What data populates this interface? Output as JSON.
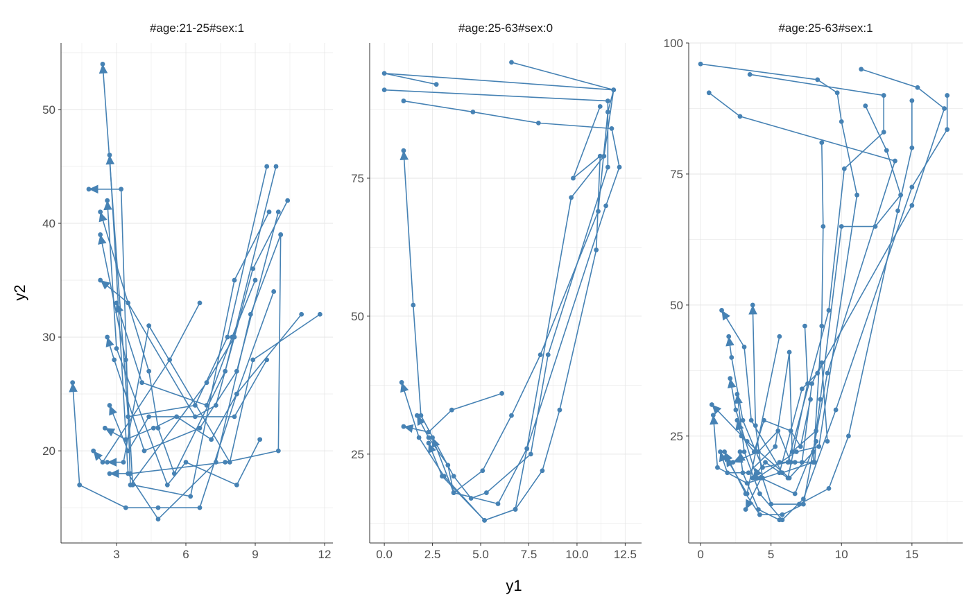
{
  "chart_data": {
    "type": "line",
    "xlabel": "y1",
    "ylabel": "y2",
    "color": "#4682b4",
    "grid": true,
    "panels": [
      {
        "title": "#age:21-25#sex:1",
        "xlim": [
          0.6,
          12.36
        ],
        "ylim": [
          11.9,
          55.85
        ],
        "xticks": [
          3,
          6,
          9,
          12
        ],
        "xtick_labels": [
          "3",
          "6",
          "9",
          "12"
        ],
        "yticks": [
          20,
          30,
          40,
          50
        ],
        "ytick_labels": [
          "20",
          "30",
          "40",
          "50"
        ],
        "paths": [
          [
            [
              1.1,
              26
            ],
            [
              1.4,
              17
            ],
            [
              3.4,
              15
            ],
            [
              4.8,
              15
            ],
            [
              6.6,
              15
            ],
            [
              8.2,
              25
            ],
            [
              9.8,
              34
            ]
          ],
          [
            [
              2.4,
              54
            ],
            [
              3.5,
              23
            ],
            [
              6.4,
              24
            ],
            [
              7.8,
              30
            ],
            [
              9.5,
              45
            ]
          ],
          [
            [
              2.7,
              46
            ],
            [
              3.5,
              18
            ],
            [
              4.8,
              14
            ],
            [
              7.3,
              19
            ],
            [
              8.8,
              32
            ],
            [
              10.1,
              39
            ]
          ],
          [
            [
              1.8,
              43
            ],
            [
              3.2,
              43
            ],
            [
              3.6,
              17
            ],
            [
              6.9,
              26
            ],
            [
              8.1,
              30
            ]
          ],
          [
            [
              2.6,
              42
            ],
            [
              3,
              29
            ],
            [
              5.2,
              17
            ],
            [
              6,
              19
            ],
            [
              8.2,
              17
            ],
            [
              9.2,
              21
            ]
          ],
          [
            [
              2.3,
              41
            ],
            [
              4.4,
              27
            ],
            [
              4.8,
              22
            ],
            [
              5.5,
              18
            ],
            [
              7.7,
              27
            ],
            [
              9.9,
              45
            ]
          ],
          [
            [
              2.3,
              39
            ],
            [
              3.4,
              28
            ],
            [
              3.7,
              17
            ],
            [
              6.2,
              16
            ],
            [
              8.1,
              35
            ],
            [
              9.6,
              41
            ]
          ],
          [
            [
              2.3,
              35
            ],
            [
              3.5,
              33
            ],
            [
              6.4,
              23
            ],
            [
              7.3,
              24
            ],
            [
              8.9,
              36
            ],
            [
              10.4,
              42
            ]
          ],
          [
            [
              2.6,
              30
            ],
            [
              2.9,
              28
            ],
            [
              4.2,
              20
            ],
            [
              6.6,
              22
            ],
            [
              8.2,
              27
            ],
            [
              10,
              41
            ]
          ],
          [
            [
              2.7,
              24
            ],
            [
              3.5,
              20
            ],
            [
              4.4,
              23
            ],
            [
              8.1,
              23
            ],
            [
              9.5,
              28
            ]
          ],
          [
            [
              2.5,
              22
            ],
            [
              3.4,
              21
            ],
            [
              4.6,
              22
            ],
            [
              5.6,
              23
            ],
            [
              7.1,
              21
            ],
            [
              8.2,
              25
            ],
            [
              11,
              32
            ]
          ],
          [
            [
              2,
              20
            ],
            [
              2.4,
              19
            ],
            [
              5.3,
              28
            ],
            [
              6.6,
              33
            ]
          ],
          [
            [
              2.6,
              19
            ],
            [
              3.3,
              19
            ],
            [
              4.4,
              31
            ],
            [
              7.9,
              19
            ],
            [
              8.9,
              28
            ],
            [
              11.8,
              32
            ]
          ],
          [
            [
              3,
              33
            ],
            [
              4.1,
              26
            ],
            [
              6.9,
              24
            ],
            [
              8,
              30
            ],
            [
              9,
              35
            ]
          ],
          [
            [
              2.7,
              18
            ],
            [
              3.6,
              18
            ],
            [
              7.7,
              19
            ],
            [
              10,
              20
            ],
            [
              10.1,
              39
            ]
          ]
        ]
      },
      {
        "title": "#age:25-63#sex:0",
        "xlim": [
          -0.76,
          13.35
        ],
        "ylim": [
          8.9,
          99.5
        ],
        "xticks": [
          0,
          2.5,
          5,
          7.5,
          10,
          12.5
        ],
        "xtick_labels": [
          "0.0",
          "2.5",
          "5.0",
          "7.5",
          "10.0",
          "12.5"
        ],
        "yticks": [
          25,
          50,
          75
        ],
        "ytick_labels": [
          "25",
          "50",
          "75"
        ],
        "paths": [
          [
            [
              1,
              80
            ],
            [
              1.5,
              52
            ],
            [
              1.9,
              32
            ],
            [
              3.6,
              21
            ],
            [
              4.5,
              17
            ],
            [
              5.3,
              18
            ],
            [
              7.6,
              25
            ],
            [
              8.5,
              43
            ],
            [
              11.6,
              77
            ],
            [
              11.6,
              89
            ],
            [
              0,
              91
            ]
          ],
          [
            [
              0.9,
              38
            ],
            [
              1.8,
              28
            ],
            [
              3.1,
              21
            ],
            [
              5.2,
              13
            ],
            [
              6.8,
              15
            ],
            [
              7.4,
              26
            ],
            [
              11.5,
              70
            ],
            [
              12.2,
              77
            ],
            [
              11.8,
              84
            ],
            [
              8,
              85
            ],
            [
              4.6,
              87
            ],
            [
              1,
              89
            ]
          ],
          [
            [
              1,
              30
            ],
            [
              2.3,
              29
            ],
            [
              3.5,
              33
            ],
            [
              6.1,
              36
            ]
          ],
          [
            [
              1.7,
              32
            ],
            [
              2.3,
              28
            ],
            [
              3.3,
              23
            ],
            [
              3.6,
              18
            ],
            [
              5.1,
              22
            ],
            [
              6.6,
              32
            ],
            [
              8.1,
              43
            ],
            [
              11.1,
              69
            ],
            [
              11.6,
              87
            ],
            [
              11.9,
              91
            ],
            [
              0,
              94
            ],
            [
              2.7,
              92
            ]
          ],
          [
            [
              2.3,
              27
            ],
            [
              3,
              21
            ],
            [
              5.2,
              13
            ],
            [
              6.8,
              15
            ],
            [
              8.2,
              22
            ],
            [
              9.1,
              33
            ],
            [
              11,
              62
            ],
            [
              11.2,
              79
            ],
            [
              9.8,
              75
            ],
            [
              11.2,
              88
            ]
          ],
          [
            [
              2.5,
              28
            ],
            [
              3.6,
              18
            ],
            [
              5.9,
              16
            ],
            [
              7.4,
              26
            ],
            [
              9.7,
              71.5
            ],
            [
              11.4,
              79
            ],
            [
              11.9,
              91
            ],
            [
              6.6,
              96
            ]
          ]
        ]
      },
      {
        "title": "#age:25-63#sex:1",
        "xlim": [
          -0.84,
          18.6
        ],
        "ylim": [
          4.6,
          100
        ],
        "xticks": [
          0,
          5,
          10,
          15
        ],
        "xtick_labels": [
          "0",
          "5",
          "10",
          "15"
        ],
        "yticks": [
          25,
          50,
          75,
          100
        ],
        "ytick_labels": [
          "25",
          "50",
          "75",
          "100"
        ],
        "paths": [
          [
            [
              3.7,
              50
            ],
            [
              3.9,
              27
            ],
            [
              4.4,
              17
            ],
            [
              5,
              12
            ],
            [
              7,
              12
            ],
            [
              9.1,
              15
            ],
            [
              10.5,
              25
            ],
            [
              14,
              68
            ],
            [
              15,
              80
            ],
            [
              15,
              89
            ]
          ],
          [
            [
              1.5,
              49
            ],
            [
              3.1,
              42
            ],
            [
              3.6,
              28
            ],
            [
              5.8,
              18
            ],
            [
              8,
              20
            ],
            [
              8.6,
              46
            ],
            [
              8.7,
              65
            ],
            [
              8.6,
              81
            ]
          ],
          [
            [
              2,
              44
            ],
            [
              2.2,
              40
            ],
            [
              3,
              28
            ],
            [
              4.4,
              19
            ],
            [
              6.2,
              20
            ],
            [
              9.1,
              49
            ],
            [
              10.2,
              76
            ],
            [
              13,
              83
            ],
            [
              13,
              90
            ],
            [
              3.5,
              94
            ]
          ],
          [
            [
              2.1,
              36
            ],
            [
              2.5,
              30
            ],
            [
              4,
              17
            ],
            [
              6.8,
              22
            ],
            [
              8.4,
              23
            ],
            [
              11.1,
              71
            ],
            [
              10,
              85
            ],
            [
              9.7,
              90.5
            ],
            [
              8.3,
              93
            ],
            [
              0,
              96
            ]
          ],
          [
            [
              2.6,
              33
            ],
            [
              3.1,
              22
            ],
            [
              4.2,
              14
            ],
            [
              5.8,
              9
            ],
            [
              7.3,
              13
            ],
            [
              9.6,
              30
            ],
            [
              15,
              72.5
            ],
            [
              17.5,
              83.5
            ],
            [
              17.5,
              90
            ]
          ],
          [
            [
              0.8,
              31
            ],
            [
              3.3,
              24
            ],
            [
              6.3,
              17
            ],
            [
              8,
              22
            ],
            [
              8.5,
              32
            ],
            [
              10,
              65
            ],
            [
              12.4,
              65
            ],
            [
              14.2,
              71
            ],
            [
              13.2,
              79.5
            ],
            [
              11.7,
              88
            ]
          ],
          [
            [
              0.9,
              29
            ],
            [
              1.2,
              19
            ],
            [
              3.3,
              16
            ],
            [
              5.6,
              18
            ],
            [
              7.2,
              34
            ],
            [
              8.3,
              37
            ],
            [
              15,
              69
            ],
            [
              17.3,
              87.5
            ],
            [
              15.4,
              91.5
            ],
            [
              11.4,
              95
            ]
          ],
          [
            [
              1.7,
              22
            ],
            [
              3.2,
              14
            ],
            [
              4.2,
              10
            ],
            [
              5.8,
              10
            ],
            [
              7.3,
              12
            ],
            [
              9,
              37
            ],
            [
              13.8,
              77.5
            ],
            [
              2.8,
              86
            ],
            [
              0.6,
              90.5
            ]
          ],
          [
            [
              1.4,
              22
            ],
            [
              1.9,
              18
            ],
            [
              3.4,
              18
            ],
            [
              5.3,
              23
            ],
            [
              6.3,
              41
            ],
            [
              6.5,
              22
            ],
            [
              8.2,
              26
            ]
          ],
          [
            [
              2.3,
              20
            ],
            [
              4.1,
              22
            ],
            [
              5.5,
              26
            ],
            [
              6.4,
              20
            ],
            [
              7.2,
              20
            ],
            [
              7.9,
              35
            ],
            [
              8.6,
              39
            ],
            [
              9,
              24
            ]
          ],
          [
            [
              1.8,
              21
            ],
            [
              3.3,
              14
            ],
            [
              5.6,
              44
            ]
          ],
          [
            [
              3.7,
              17
            ],
            [
              4.6,
              20
            ],
            [
              6.2,
              17
            ],
            [
              7.6,
              35
            ],
            [
              7.4,
              46
            ]
          ],
          [
            [
              3.2,
              11
            ],
            [
              4.3,
              17
            ],
            [
              6.7,
              14
            ],
            [
              8.2,
              24
            ],
            [
              8.1,
              20
            ],
            [
              6.7,
              20
            ],
            [
              5.6,
              20
            ]
          ],
          [
            [
              2.6,
              28
            ],
            [
              2.9,
              25
            ],
            [
              3.8,
              22
            ],
            [
              4.5,
              28
            ],
            [
              6.4,
              26
            ],
            [
              7.1,
              23
            ],
            [
              7.8,
              32
            ]
          ],
          [
            [
              2.8,
              22
            ],
            [
              3,
              18
            ],
            [
              4.1,
              11
            ],
            [
              5.6,
              9
            ]
          ]
        ]
      }
    ]
  }
}
